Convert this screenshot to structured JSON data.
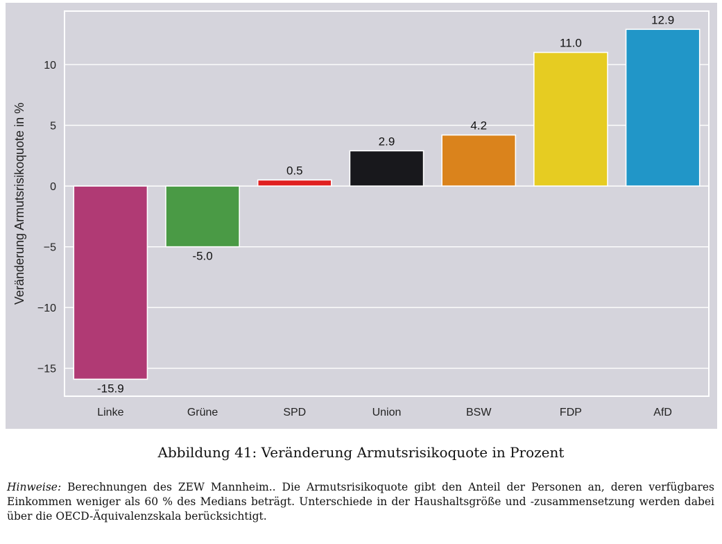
{
  "chart_data": {
    "type": "bar",
    "categories": [
      "Linke",
      "Grüne",
      "SPD",
      "Union",
      "BSW",
      "FDP",
      "AfD"
    ],
    "values": [
      -15.9,
      -5.0,
      0.5,
      2.9,
      4.2,
      11.0,
      12.9
    ],
    "data_labels": [
      "-15.9",
      "-5.0",
      "0.5",
      "2.9",
      "4.2",
      "11.0",
      "12.9"
    ],
    "colors": [
      "#b03a74",
      "#4a9a45",
      "#e02020",
      "#18181c",
      "#da831c",
      "#e6cc22",
      "#2196c8"
    ],
    "title": "",
    "xlabel": "",
    "ylabel": "Veränderung Armutsrisikoquote in %",
    "ylim": [
      -17.3,
      14.4
    ],
    "yticks": [
      -15,
      -10,
      -5,
      0,
      5,
      10
    ],
    "ytick_labels": [
      "−15",
      "−10",
      "−5",
      "0",
      "5",
      "10"
    ],
    "grid": true,
    "background": "#d5d4dc",
    "grid_color": "#ffffff"
  },
  "caption": "Abbildung 41: Veränderung Armutsrisikoquote in Prozent",
  "note": {
    "label": "Hinweise:",
    "text": " Berechnungen des ZEW Mannheim.. Die Armutsrisikoquote gibt den Anteil der Personen an, deren verfügbares Einkommen weniger als 60 % des Medians beträgt. Unterschiede in der Haushaltsgröße und -zusammensetzung werden dabei über die OECD-Äquivalenzskala berücksichtigt."
  }
}
